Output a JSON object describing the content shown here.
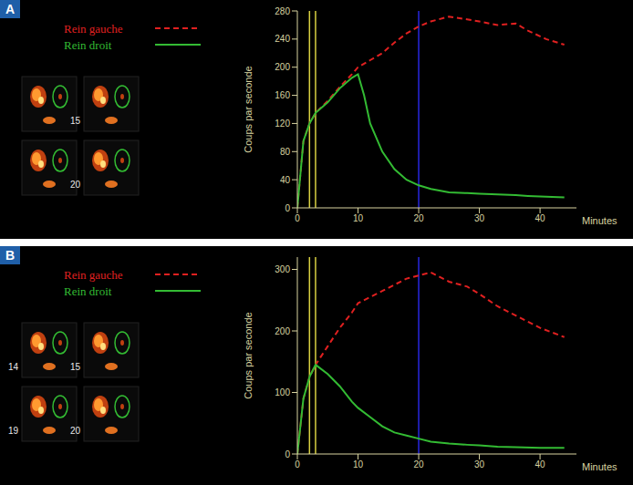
{
  "chart_data": [
    {
      "panel": "A",
      "type": "line",
      "image_labels": [
        null,
        "15",
        null,
        "20"
      ],
      "xlabel": "Minutes",
      "ylabel": "Coups par seconde",
      "x": [
        0,
        1,
        2,
        3,
        5,
        7,
        9,
        10,
        11,
        12,
        14,
        16,
        18,
        20,
        22,
        25,
        28,
        30,
        33,
        36,
        38,
        41,
        44
      ],
      "series": [
        {
          "name": "Rein gauche",
          "color": "#e02020",
          "line_style": "dashed",
          "values": [
            0,
            95,
            120,
            135,
            152,
            172,
            190,
            200,
            205,
            210,
            220,
            235,
            248,
            258,
            265,
            272,
            268,
            265,
            260,
            262,
            252,
            240,
            232
          ]
        },
        {
          "name": "Rein droit",
          "color": "#33bb33",
          "line_style": "solid",
          "values": [
            0,
            95,
            120,
            135,
            150,
            170,
            185,
            190,
            160,
            120,
            80,
            55,
            40,
            32,
            27,
            22,
            21,
            20,
            19,
            18,
            17,
            16,
            15
          ]
        }
      ],
      "xlim": [
        0,
        46
      ],
      "ylim": [
        0,
        280
      ],
      "xticks": [
        0,
        10,
        20,
        30,
        40
      ],
      "yticks": [
        0,
        40,
        80,
        120,
        160,
        200,
        240,
        280
      ],
      "vlines": [
        {
          "x": 2,
          "color": "#d8d040"
        },
        {
          "x": 3,
          "color": "#d8d040"
        },
        {
          "x": 20,
          "color": "#2828e0"
        }
      ],
      "grid": false,
      "legend": "upper left"
    },
    {
      "panel": "B",
      "type": "line",
      "image_labels": [
        "14",
        "15",
        "19",
        "20"
      ],
      "xlabel": "Minutes",
      "ylabel": "Coups par seconde",
      "x": [
        0,
        1,
        2,
        3,
        5,
        7,
        9,
        10,
        12,
        14,
        16,
        18,
        20,
        22,
        25,
        28,
        30,
        33,
        36,
        40,
        44
      ],
      "series": [
        {
          "name": "Rein gauche",
          "color": "#e02020",
          "line_style": "dashed",
          "values": [
            0,
            90,
            125,
            145,
            175,
            205,
            230,
            245,
            255,
            265,
            275,
            285,
            290,
            295,
            280,
            272,
            260,
            240,
            225,
            205,
            190
          ]
        },
        {
          "name": "Rein droit",
          "color": "#33bb33",
          "line_style": "solid",
          "values": [
            0,
            90,
            125,
            145,
            130,
            110,
            85,
            75,
            60,
            45,
            35,
            30,
            25,
            20,
            17,
            15,
            14,
            12,
            11,
            10,
            10
          ]
        }
      ],
      "xlim": [
        0,
        46
      ],
      "ylim": [
        0,
        320
      ],
      "xticks": [
        0,
        10,
        20,
        30,
        40
      ],
      "yticks": [
        0,
        100,
        200,
        300
      ],
      "vlines": [
        {
          "x": 2,
          "color": "#d8d040"
        },
        {
          "x": 3,
          "color": "#d8d040"
        },
        {
          "x": 20,
          "color": "#2828e0"
        }
      ],
      "grid": false,
      "legend": "upper left"
    }
  ]
}
